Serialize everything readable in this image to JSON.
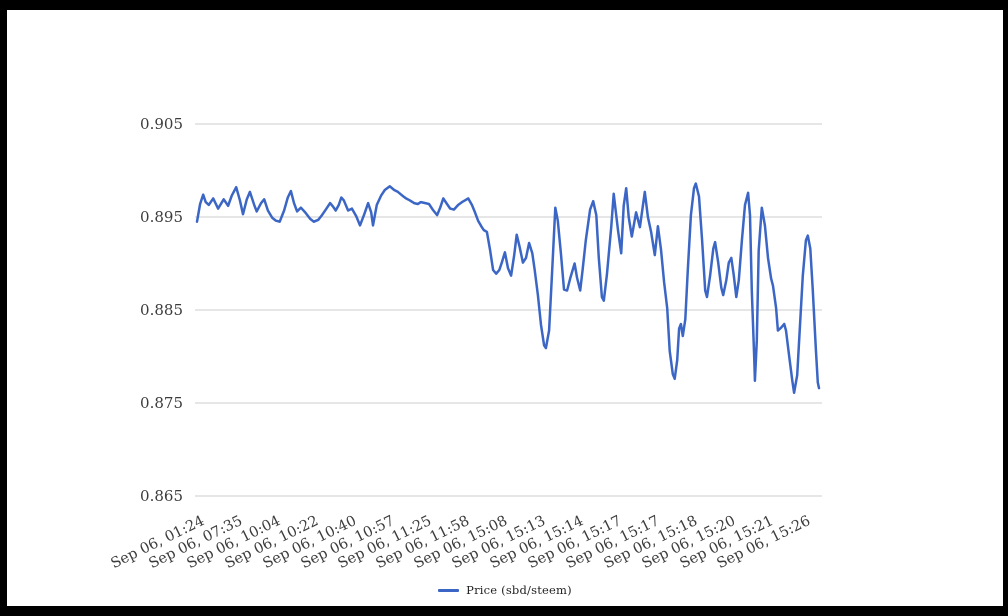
{
  "window": {
    "outer_background": "#000000",
    "canvas_background": "#ffffff"
  },
  "chart_data": {
    "type": "line",
    "title": "",
    "xlabel": "",
    "ylabel": "",
    "grid": true,
    "grid_color": "#cccccc",
    "axis_text_color": "#3c3c3c",
    "legend": {
      "position": "bottom",
      "label": "Price (sbd/steem)"
    },
    "series": [
      {
        "name": "Price (sbd/steem)",
        "color": "#3b66c5"
      }
    ],
    "ylim": [
      0.865,
      0.905
    ],
    "y_ticks": [
      0.905,
      0.895,
      0.885,
      0.875,
      0.865
    ],
    "y_tick_labels": [
      "0.905",
      "0.895",
      "0.885",
      "0.875",
      "0.865"
    ],
    "categories": [
      {
        "label": "Sep 06, 01:24",
        "x": 0.0
      },
      {
        "label": "Sep 06, 07:35",
        "x": 0.061
      },
      {
        "label": "Sep 06, 10:04",
        "x": 0.122
      },
      {
        "label": "Sep 06, 10:22",
        "x": 0.183
      },
      {
        "label": "Sep 06, 10:40",
        "x": 0.244
      },
      {
        "label": "Sep 06, 10:57",
        "x": 0.305
      },
      {
        "label": "Sep 06, 11:25",
        "x": 0.365
      },
      {
        "label": "Sep 06, 11:58",
        "x": 0.426
      },
      {
        "label": "Sep 06, 15:08",
        "x": 0.487
      },
      {
        "label": "Sep 06, 15:13",
        "x": 0.548
      },
      {
        "label": "Sep 06, 15:14",
        "x": 0.609
      },
      {
        "label": "Sep 06, 15:17",
        "x": 0.67
      },
      {
        "label": "Sep 06, 15:17",
        "x": 0.731
      },
      {
        "label": "Sep 06, 15:18",
        "x": 0.792
      },
      {
        "label": "Sep 06, 15:20",
        "x": 0.853
      },
      {
        "label": "Sep 06, 15:21",
        "x": 0.914
      },
      {
        "label": "Sep 06, 15:26",
        "x": 0.975
      }
    ],
    "points": [
      [
        0.0,
        0.8945
      ],
      [
        0.005,
        0.8964
      ],
      [
        0.01,
        0.8974
      ],
      [
        0.014,
        0.8966
      ],
      [
        0.019,
        0.8963
      ],
      [
        0.026,
        0.897
      ],
      [
        0.034,
        0.8959
      ],
      [
        0.043,
        0.8969
      ],
      [
        0.05,
        0.8962
      ],
      [
        0.056,
        0.8973
      ],
      [
        0.063,
        0.8982
      ],
      [
        0.069,
        0.8968
      ],
      [
        0.074,
        0.8953
      ],
      [
        0.08,
        0.8969
      ],
      [
        0.085,
        0.8977
      ],
      [
        0.092,
        0.8963
      ],
      [
        0.096,
        0.8956
      ],
      [
        0.103,
        0.8965
      ],
      [
        0.108,
        0.8969
      ],
      [
        0.114,
        0.8957
      ],
      [
        0.121,
        0.8949
      ],
      [
        0.127,
        0.8946
      ],
      [
        0.133,
        0.8945
      ],
      [
        0.14,
        0.8957
      ],
      [
        0.146,
        0.8971
      ],
      [
        0.151,
        0.8978
      ],
      [
        0.156,
        0.8965
      ],
      [
        0.161,
        0.8956
      ],
      [
        0.167,
        0.896
      ],
      [
        0.174,
        0.8955
      ],
      [
        0.182,
        0.8948
      ],
      [
        0.188,
        0.8945
      ],
      [
        0.195,
        0.8947
      ],
      [
        0.201,
        0.8952
      ],
      [
        0.207,
        0.8958
      ],
      [
        0.214,
        0.8965
      ],
      [
        0.219,
        0.8961
      ],
      [
        0.223,
        0.8957
      ],
      [
        0.228,
        0.8963
      ],
      [
        0.232,
        0.8971
      ],
      [
        0.236,
        0.8968
      ],
      [
        0.243,
        0.8957
      ],
      [
        0.249,
        0.8959
      ],
      [
        0.256,
        0.8951
      ],
      [
        0.262,
        0.8941
      ],
      [
        0.269,
        0.8953
      ],
      [
        0.275,
        0.8965
      ],
      [
        0.28,
        0.8955
      ],
      [
        0.283,
        0.8941
      ],
      [
        0.289,
        0.8963
      ],
      [
        0.296,
        0.8973
      ],
      [
        0.302,
        0.8979
      ],
      [
        0.31,
        0.8983
      ],
      [
        0.317,
        0.8979
      ],
      [
        0.323,
        0.8977
      ],
      [
        0.33,
        0.8973
      ],
      [
        0.336,
        0.897
      ],
      [
        0.342,
        0.8968
      ],
      [
        0.349,
        0.8965
      ],
      [
        0.355,
        0.8964
      ],
      [
        0.36,
        0.8966
      ],
      [
        0.367,
        0.8965
      ],
      [
        0.373,
        0.8964
      ],
      [
        0.379,
        0.8958
      ],
      [
        0.386,
        0.8952
      ],
      [
        0.391,
        0.896
      ],
      [
        0.396,
        0.897
      ],
      [
        0.402,
        0.8964
      ],
      [
        0.407,
        0.8959
      ],
      [
        0.413,
        0.8958
      ],
      [
        0.42,
        0.8963
      ],
      [
        0.426,
        0.8966
      ],
      [
        0.431,
        0.8968
      ],
      [
        0.436,
        0.897
      ],
      [
        0.442,
        0.8963
      ],
      [
        0.447,
        0.8955
      ],
      [
        0.452,
        0.8946
      ],
      [
        0.457,
        0.894
      ],
      [
        0.461,
        0.8936
      ],
      [
        0.466,
        0.8934
      ],
      [
        0.471,
        0.8915
      ],
      [
        0.476,
        0.8893
      ],
      [
        0.481,
        0.8889
      ],
      [
        0.486,
        0.8893
      ],
      [
        0.49,
        0.8901
      ],
      [
        0.495,
        0.8912
      ],
      [
        0.5,
        0.8895
      ],
      [
        0.505,
        0.8887
      ],
      [
        0.51,
        0.8909
      ],
      [
        0.514,
        0.8931
      ],
      [
        0.519,
        0.8917
      ],
      [
        0.524,
        0.8901
      ],
      [
        0.529,
        0.8906
      ],
      [
        0.534,
        0.8922
      ],
      [
        0.539,
        0.8911
      ],
      [
        0.543,
        0.8893
      ],
      [
        0.548,
        0.8866
      ],
      [
        0.553,
        0.8834
      ],
      [
        0.558,
        0.8812
      ],
      [
        0.561,
        0.8809
      ],
      [
        0.566,
        0.8828
      ],
      [
        0.571,
        0.8893
      ],
      [
        0.576,
        0.896
      ],
      [
        0.58,
        0.8946
      ],
      [
        0.585,
        0.8911
      ],
      [
        0.59,
        0.8872
      ],
      [
        0.595,
        0.8871
      ],
      [
        0.6,
        0.8884
      ],
      [
        0.607,
        0.89
      ],
      [
        0.611,
        0.8885
      ],
      [
        0.616,
        0.8871
      ],
      [
        0.62,
        0.8893
      ],
      [
        0.625,
        0.8925
      ],
      [
        0.632,
        0.8958
      ],
      [
        0.637,
        0.8967
      ],
      [
        0.642,
        0.8952
      ],
      [
        0.646,
        0.8906
      ],
      [
        0.651,
        0.8864
      ],
      [
        0.654,
        0.886
      ],
      [
        0.659,
        0.8888
      ],
      [
        0.666,
        0.894
      ],
      [
        0.67,
        0.8975
      ],
      [
        0.677,
        0.8935
      ],
      [
        0.682,
        0.8911
      ],
      [
        0.686,
        0.8962
      ],
      [
        0.69,
        0.8981
      ],
      [
        0.694,
        0.895
      ],
      [
        0.699,
        0.8929
      ],
      [
        0.706,
        0.8955
      ],
      [
        0.712,
        0.8939
      ],
      [
        0.72,
        0.8977
      ],
      [
        0.725,
        0.895
      ],
      [
        0.73,
        0.8934
      ],
      [
        0.736,
        0.8909
      ],
      [
        0.741,
        0.894
      ],
      [
        0.746,
        0.8915
      ],
      [
        0.751,
        0.888
      ],
      [
        0.756,
        0.8852
      ],
      [
        0.76,
        0.8806
      ],
      [
        0.765,
        0.8781
      ],
      [
        0.768,
        0.8776
      ],
      [
        0.772,
        0.8796
      ],
      [
        0.775,
        0.883
      ],
      [
        0.778,
        0.8835
      ],
      [
        0.781,
        0.8822
      ],
      [
        0.785,
        0.884
      ],
      [
        0.789,
        0.8893
      ],
      [
        0.794,
        0.8952
      ],
      [
        0.799,
        0.8981
      ],
      [
        0.802,
        0.8986
      ],
      [
        0.807,
        0.8972
      ],
      [
        0.812,
        0.8925
      ],
      [
        0.817,
        0.8871
      ],
      [
        0.82,
        0.8864
      ],
      [
        0.825,
        0.8887
      ],
      [
        0.83,
        0.8916
      ],
      [
        0.833,
        0.8923
      ],
      [
        0.838,
        0.8901
      ],
      [
        0.843,
        0.8874
      ],
      [
        0.846,
        0.8866
      ],
      [
        0.851,
        0.8882
      ],
      [
        0.855,
        0.8901
      ],
      [
        0.859,
        0.8906
      ],
      [
        0.863,
        0.8887
      ],
      [
        0.867,
        0.8864
      ],
      [
        0.871,
        0.8882
      ],
      [
        0.876,
        0.8925
      ],
      [
        0.881,
        0.8963
      ],
      [
        0.886,
        0.8976
      ],
      [
        0.889,
        0.8952
      ],
      [
        0.892,
        0.8871
      ],
      [
        0.896,
        0.8796
      ],
      [
        0.897,
        0.8774
      ],
      [
        0.9,
        0.8817
      ],
      [
        0.903,
        0.8914
      ],
      [
        0.908,
        0.896
      ],
      [
        0.913,
        0.8941
      ],
      [
        0.918,
        0.8906
      ],
      [
        0.923,
        0.8884
      ],
      [
        0.926,
        0.8876
      ],
      [
        0.931,
        0.8852
      ],
      [
        0.934,
        0.8828
      ],
      [
        0.939,
        0.8831
      ],
      [
        0.944,
        0.8835
      ],
      [
        0.947,
        0.8828
      ],
      [
        0.952,
        0.8801
      ],
      [
        0.957,
        0.8774
      ],
      [
        0.96,
        0.8761
      ],
      [
        0.965,
        0.878
      ],
      [
        0.969,
        0.8828
      ],
      [
        0.974,
        0.8887
      ],
      [
        0.979,
        0.8925
      ],
      [
        0.982,
        0.893
      ],
      [
        0.986,
        0.8916
      ],
      [
        0.99,
        0.8871
      ],
      [
        0.995,
        0.8807
      ],
      [
        0.998,
        0.8772
      ],
      [
        1.0,
        0.8766
      ]
    ]
  }
}
